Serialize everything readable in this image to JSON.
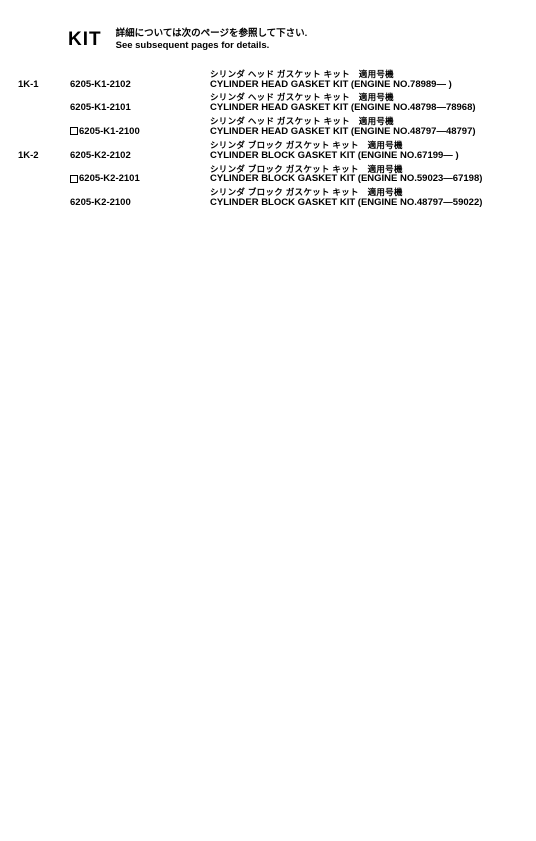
{
  "header": {
    "kit_label": "KIT",
    "sub_jp": "詳細については次のページを参照して下さい.",
    "sub_en": "See subsequent pages for details."
  },
  "rows": [
    {
      "index": "1K-1",
      "part_no": "6205-K1-2102",
      "has_checkbox": false,
      "jp": "シリンダ ヘッド ガスケット キット　適用号機",
      "en": "CYLINDER HEAD GASKET KIT (ENGINE NO.78989— )"
    },
    {
      "index": "",
      "part_no": "6205-K1-2101",
      "has_checkbox": false,
      "jp": "シリンダ ヘッド ガスケット キット　適用号機",
      "en": "CYLINDER HEAD GASKET KIT (ENGINE NO.48798—78968)"
    },
    {
      "index": "",
      "part_no": "6205-K1-2100",
      "has_checkbox": true,
      "jp": "シリンダ ヘッド ガスケット キット　適用号機",
      "en": "CYLINDER HEAD GASKET KIT (ENGINE NO.48797—48797)"
    },
    {
      "index": "1K-2",
      "part_no": "6205-K2-2102",
      "has_checkbox": false,
      "jp": "シリンダ ブロック ガスケット キット　適用号機",
      "en": "CYLINDER BLOCK GASKET KIT (ENGINE NO.67199— )"
    },
    {
      "index": "",
      "part_no": "6205-K2-2101",
      "has_checkbox": true,
      "jp": "シリンダ ブロック ガスケット キット　適用号機",
      "en": "CYLINDER BLOCK GASKET KIT (ENGINE NO.59023—67198)"
    },
    {
      "index": "",
      "part_no": "6205-K2-2100",
      "has_checkbox": false,
      "jp": "シリンダ ブロック ガスケット キット　適用号機",
      "en": "CYLINDER BLOCK GASKET KIT (ENGINE NO.48797—59022)"
    }
  ]
}
